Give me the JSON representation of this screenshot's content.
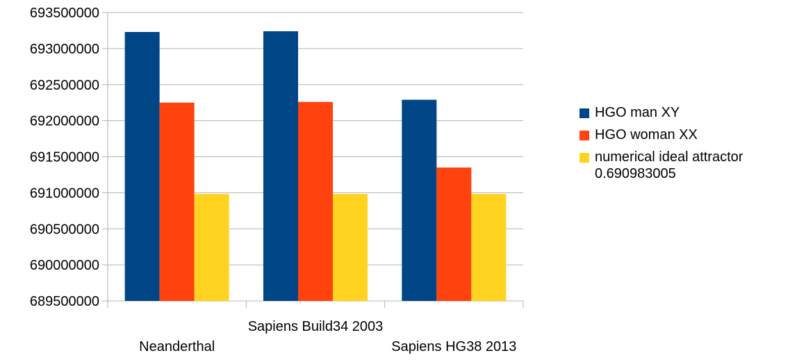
{
  "chart_data": {
    "type": "bar",
    "title": "",
    "xlabel": "",
    "ylabel": "",
    "categories": [
      "Neanderthal",
      "Sapiens Build34 2003",
      "Sapiens HG38 2013"
    ],
    "series": [
      {
        "name": "HGO man XY",
        "color": "#004586",
        "values": [
          693230000,
          693240000,
          692290000
        ]
      },
      {
        "name": "HGO woman XX",
        "color": "#ff420e",
        "values": [
          692250000,
          692260000,
          691350000
        ]
      },
      {
        "name": "numerical ideal attractor\n0.690983005",
        "color": "#ffd320",
        "values": [
          690983005,
          690983005,
          690983005
        ]
      }
    ],
    "ylim": [
      689500000,
      693500000
    ],
    "yticks": [
      "689500000",
      "690000000",
      "690500000",
      "691000000",
      "691500000",
      "692000000",
      "692500000",
      "693000000",
      "693500000"
    ],
    "grid": true,
    "legend_position": "right"
  }
}
